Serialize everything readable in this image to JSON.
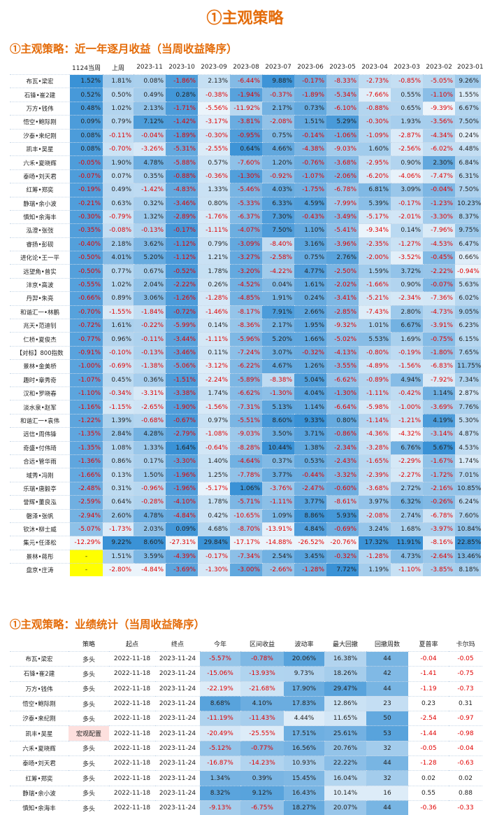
{
  "page_title": "①主观策略",
  "section1": {
    "title": "①主观策略：近一年逐月收益（当周收益降序）",
    "headers": [
      "",
      "1124当周",
      "上周",
      "2023-11",
      "2023-10",
      "2023-09",
      "2023-08",
      "2023-07",
      "2023-06",
      "2023-05",
      "2023-04",
      "2023-03",
      "2023-02",
      "2023-01"
    ],
    "rows": [
      [
        "布瓦•梁宏",
        "1.52%",
        "1.81%",
        "0.08%",
        "-1.86%",
        "2.13%",
        "-6.44%",
        "9.88%",
        "-0.17%",
        "-8.33%",
        "-2.73%",
        "-0.85%",
        "-5.05%",
        "9.26%"
      ],
      [
        "石锋•崔2建",
        "0.52%",
        "0.50%",
        "0.49%",
        "0.28%",
        "-0.38%",
        "-1.94%",
        "-0.37%",
        "-1.89%",
        "-5.34%",
        "-7.66%",
        "0.55%",
        "-1.10%",
        "1.55%"
      ],
      [
        "万方•钱伟",
        "0.48%",
        "1.02%",
        "2.13%",
        "-1.71%",
        "-5.56%",
        "-11.92%",
        "2.17%",
        "0.73%",
        "-6.10%",
        "-0.88%",
        "0.65%",
        "-9.39%",
        "6.67%"
      ],
      [
        "悟空•鲍际刚",
        "0.09%",
        "0.79%",
        "7.12%",
        "-1.42%",
        "-3.17%",
        "-3.81%",
        "-2.08%",
        "1.51%",
        "5.29%",
        "-0.30%",
        "1.93%",
        "-3.56%",
        "7.50%"
      ],
      [
        "汐泰•来纪刚",
        "0.08%",
        "-0.11%",
        "-0.04%",
        "-1.89%",
        "-0.30%",
        "-0.95%",
        "0.75%",
        "-0.14%",
        "-1.06%",
        "-1.09%",
        "-2.87%",
        "-4.34%",
        "0.24%"
      ],
      [
        "凯丰•吴星",
        "0.08%",
        "-0.70%",
        "-3.26%",
        "-5.31%",
        "-2.55%",
        "0.64%",
        "4.66%",
        "-4.38%",
        "-9.03%",
        "1.60%",
        "-2.56%",
        "-6.02%",
        "4.48%"
      ],
      [
        "六禾•夏晓辉",
        "-0.05%",
        "1.90%",
        "4.78%",
        "-5.88%",
        "0.57%",
        "-7.60%",
        "1.20%",
        "-0.76%",
        "-3.68%",
        "-2.95%",
        "0.90%",
        "2.30%",
        "6.84%"
      ],
      [
        "泰旸•刘天君",
        "-0.07%",
        "0.07%",
        "0.35%",
        "-0.88%",
        "-0.36%",
        "-1.30%",
        "-0.92%",
        "-1.07%",
        "-2.06%",
        "-6.20%",
        "-4.06%",
        "-7.47%",
        "6.31%"
      ],
      [
        "红筹•郑奕",
        "-0.19%",
        "0.49%",
        "-1.42%",
        "-4.83%",
        "1.33%",
        "-5.46%",
        "4.03%",
        "-1.75%",
        "-6.78%",
        "6.81%",
        "3.09%",
        "-0.04%",
        "7.50%"
      ],
      [
        "静瑞•余小波",
        "-0.21%",
        "0.63%",
        "0.32%",
        "-3.46%",
        "0.80%",
        "-5.33%",
        "6.33%",
        "4.59%",
        "-7.99%",
        "5.39%",
        "-0.17%",
        "-1.23%",
        "10.23%"
      ],
      [
        "慎知•余海丰",
        "-0.30%",
        "-0.79%",
        "1.32%",
        "-2.89%",
        "-1.76%",
        "-6.37%",
        "7.30%",
        "-0.43%",
        "-3.49%",
        "-5.17%",
        "-2.01%",
        "-3.30%",
        "8.37%"
      ],
      [
        "泓澄•张弢",
        "-0.35%",
        "-0.08%",
        "-0.13%",
        "-0.17%",
        "-1.11%",
        "-4.07%",
        "7.50%",
        "1.10%",
        "-5.41%",
        "-9.34%",
        "0.14%",
        "-7.96%",
        "9.75%"
      ],
      [
        "睿扬•彭砚",
        "-0.40%",
        "2.18%",
        "3.62%",
        "-1.12%",
        "0.79%",
        "-3.09%",
        "-8.40%",
        "3.16%",
        "-3.96%",
        "-2.35%",
        "-1.27%",
        "-4.53%",
        "6.47%"
      ],
      [
        "进化论•王一平",
        "-0.50%",
        "4.01%",
        "5.20%",
        "-1.12%",
        "1.21%",
        "-3.27%",
        "-2.58%",
        "0.75%",
        "2.76%",
        "-2.00%",
        "-3.52%",
        "-0.45%",
        "0.66%"
      ],
      [
        "远望角•曾实",
        "-0.50%",
        "0.77%",
        "0.67%",
        "-0.52%",
        "1.78%",
        "-3.20%",
        "-4.22%",
        "4.77%",
        "-2.50%",
        "1.59%",
        "3.72%",
        "-2.22%",
        "-0.94%"
      ],
      [
        "沣京•高波",
        "-0.55%",
        "1.02%",
        "2.04%",
        "-2.22%",
        "0.26%",
        "-4.52%",
        "0.04%",
        "1.61%",
        "-2.02%",
        "-1.66%",
        "0.90%",
        "-0.07%",
        "5.63%"
      ],
      [
        "丹羿•朱亮",
        "-0.66%",
        "0.89%",
        "3.06%",
        "-1.26%",
        "-1.28%",
        "-4.85%",
        "1.91%",
        "0.24%",
        "-3.41%",
        "-5.21%",
        "-2.34%",
        "-7.36%",
        "6.02%"
      ],
      [
        "和谐汇一•林鹏",
        "-0.70%",
        "-1.55%",
        "-1.84%",
        "-0.72%",
        "-1.46%",
        "-8.17%",
        "7.91%",
        "2.66%",
        "-2.85%",
        "-7.43%",
        "2.80%",
        "-4.73%",
        "9.05%"
      ],
      [
        "兆天•范迪钊",
        "-0.72%",
        "1.61%",
        "-0.22%",
        "-5.99%",
        "0.14%",
        "-8.36%",
        "2.17%",
        "1.95%",
        "-9.32%",
        "1.01%",
        "6.67%",
        "-3.91%",
        "6.23%"
      ],
      [
        "仁桥•夏俊杰",
        "-0.77%",
        "0.96%",
        "-0.11%",
        "-3.44%",
        "-1.11%",
        "-5.96%",
        "5.20%",
        "1.66%",
        "-5.02%",
        "5.53%",
        "1.69%",
        "-0.75%",
        "6.15%"
      ],
      [
        "【对标】800指数",
        "-0.91%",
        "-0.10%",
        "-0.13%",
        "-3.46%",
        "0.11%",
        "-7.24%",
        "3.07%",
        "-0.32%",
        "-4.13%",
        "-0.80%",
        "-0.19%",
        "-1.80%",
        "7.65%"
      ],
      [
        "景林•金美桥",
        "-1.00%",
        "-0.69%",
        "-1.38%",
        "-5.06%",
        "-3.12%",
        "-6.22%",
        "4.67%",
        "1.26%",
        "-3.55%",
        "-4.89%",
        "-1.56%",
        "-6.83%",
        "11.75%"
      ],
      [
        "趣时•章秀奇",
        "-1.07%",
        "0.45%",
        "0.36%",
        "-1.51%",
        "-2.24%",
        "-5.89%",
        "-8.38%",
        "5.04%",
        "-6.62%",
        "-0.89%",
        "4.94%",
        "-7.92%",
        "7.34%"
      ],
      [
        "汉和•罗晓春",
        "-1.10%",
        "-0.34%",
        "-3.31%",
        "-3.38%",
        "1.74%",
        "-6.62%",
        "-1.30%",
        "4.04%",
        "-1.30%",
        "-1.11%",
        "-0.42%",
        "1.14%",
        "2.87%"
      ],
      [
        "淡水泉•赵军",
        "-1.16%",
        "-1.15%",
        "-2.65%",
        "-1.90%",
        "-1.56%",
        "-7.31%",
        "5.13%",
        "1.14%",
        "-6.64%",
        "-5.98%",
        "-1.00%",
        "-3.69%",
        "7.76%"
      ],
      [
        "和谐汇一•袁伟",
        "-1.22%",
        "1.39%",
        "-0.68%",
        "-0.67%",
        "0.97%",
        "-5.51%",
        "8.60%",
        "9.33%",
        "0.80%",
        "-1.14%",
        "-1.21%",
        "4.19%",
        "5.30%"
      ],
      [
        "远信•周伟锋",
        "-1.35%",
        "2.84%",
        "4.28%",
        "-2.79%",
        "-1.08%",
        "-9.03%",
        "3.50%",
        "3.71%",
        "-0.86%",
        "-4.36%",
        "-4.32%",
        "-3.14%",
        "4.87%"
      ],
      [
        "奇盛•付伟琦",
        "-1.35%",
        "1.08%",
        "1.33%",
        "1.64%",
        "-0.64%",
        "-8.28%",
        "10.44%",
        "1.38%",
        "-2.34%",
        "-3.28%",
        "6.76%",
        "5.67%",
        "4.53%"
      ],
      [
        "合远•管华雨",
        "-1.36%",
        "0.86%",
        "0.17%",
        "-3.30%",
        "1.40%",
        "-4.64%",
        "0.37%",
        "0.53%",
        "-2.43%",
        "-1.65%",
        "-2.29%",
        "-1.67%",
        "1.74%"
      ],
      [
        "域秀•冯刚",
        "-1.66%",
        "0.13%",
        "1.50%",
        "-1.96%",
        "1.25%",
        "-7.78%",
        "3.77%",
        "-0.44%",
        "-3.32%",
        "-2.39%",
        "-2.27%",
        "-1.72%",
        "7.01%"
      ],
      [
        "乐瑞•唐毅亭",
        "-2.48%",
        "0.31%",
        "-0.96%",
        "-1.96%",
        "-5.17%",
        "1.06%",
        "-3.76%",
        "-2.47%",
        "-0.60%",
        "-3.68%",
        "2.72%",
        "-2.16%",
        "10.85%"
      ],
      [
        "誉辉•董良泓",
        "-2.59%",
        "0.64%",
        "-0.28%",
        "-4.10%",
        "1.78%",
        "-5.71%",
        "-1.11%",
        "3.77%",
        "-8.61%",
        "3.97%",
        "6.32%",
        "-0.26%",
        "6.24%"
      ],
      [
        "磐泽•张帆",
        "-2.94%",
        "2.60%",
        "4.78%",
        "-4.84%",
        "0.42%",
        "-10.65%",
        "1.09%",
        "8.86%",
        "5.93%",
        "-2.08%",
        "2.74%",
        "-6.78%",
        "7.60%"
      ],
      [
        "钦沐•柳士威",
        "-5.07%",
        "-1.73%",
        "2.03%",
        "0.09%",
        "4.68%",
        "-8.70%",
        "-13.91%",
        "4.84%",
        "-0.69%",
        "3.24%",
        "1.68%",
        "-3.97%",
        "10.84%"
      ],
      [
        "集元•任泽松",
        "-12.29%",
        "9.22%",
        "8.60%",
        "-27.31%",
        "29.84%",
        "-17.17%",
        "-14.88%",
        "-26.52%",
        "-20.76%",
        "17.32%",
        "11.91%",
        "-8.16%",
        "22.85%"
      ],
      [
        "景林•蒋彤",
        "-",
        "1.51%",
        "3.59%",
        "-4.39%",
        "-0.17%",
        "-7.34%",
        "2.54%",
        "3.45%",
        "-0.32%",
        "-1.28%",
        "4.73%",
        "-2.64%",
        "13.46%"
      ],
      [
        "盘京•庄涛",
        "-",
        "-2.80%",
        "-4.84%",
        "-3.69%",
        "-1.30%",
        "-3.00%",
        "-2.66%",
        "-1.28%",
        "7.72%",
        "1.19%",
        "-1.10%",
        "-3.85%",
        "8.18%"
      ]
    ]
  },
  "section2": {
    "title": "①主观策略：业绩统计（当周收益降序）",
    "headers": [
      "",
      "策略",
      "起点",
      "终点",
      "今年",
      "区间收益",
      "波动率",
      "最大回撤",
      "回撤周数",
      "夏普率",
      "卡尔玛"
    ],
    "rows": [
      [
        "布瓦•梁宏",
        "多头",
        "2022-11-18",
        "2023-11-24",
        "-5.57%",
        "-0.78%",
        "20.06%",
        "16.38%",
        "44",
        "-0.04",
        "-0.05"
      ],
      [
        "石锋•崔2建",
        "多头",
        "2022-11-18",
        "2023-11-24",
        "-15.06%",
        "-13.93%",
        "9.73%",
        "18.26%",
        "42",
        "-1.41",
        "-0.75"
      ],
      [
        "万方•钱伟",
        "多头",
        "2022-11-18",
        "2023-11-24",
        "-22.19%",
        "-21.68%",
        "17.90%",
        "29.47%",
        "44",
        "-1.19",
        "-0.73"
      ],
      [
        "悟空•鲍际刚",
        "多头",
        "2022-11-18",
        "2023-11-24",
        "8.68%",
        "4.10%",
        "17.83%",
        "12.86%",
        "23",
        "0.23",
        "0.31"
      ],
      [
        "汐泰•来纪刚",
        "多头",
        "2022-11-18",
        "2023-11-24",
        "-11.19%",
        "-11.43%",
        "4.44%",
        "11.65%",
        "50",
        "-2.54",
        "-0.97"
      ],
      [
        "凯丰•吴星",
        "宏观配置",
        "2022-11-18",
        "2023-11-24",
        "-20.49%",
        "-25.55%",
        "17.51%",
        "25.61%",
        "53",
        "-1.44",
        "-0.98"
      ],
      [
        "六禾•夏晓辉",
        "多头",
        "2022-11-18",
        "2023-11-24",
        "-5.12%",
        "-0.77%",
        "16.56%",
        "20.76%",
        "32",
        "-0.05",
        "-0.04"
      ],
      [
        "泰旸•刘天君",
        "多头",
        "2022-11-18",
        "2023-11-24",
        "-16.87%",
        "-14.23%",
        "10.93%",
        "22.22%",
        "44",
        "-1.28",
        "-0.63"
      ],
      [
        "红筹•郑奕",
        "多头",
        "2022-11-18",
        "2023-11-24",
        "1.34%",
        "0.39%",
        "15.45%",
        "16.04%",
        "32",
        "0.02",
        "0.02"
      ],
      [
        "静瑞•余小波",
        "多头",
        "2022-11-18",
        "2023-11-24",
        "8.32%",
        "9.12%",
        "16.43%",
        "10.14%",
        "16",
        "0.55",
        "0.88"
      ],
      [
        "慎知•余海丰",
        "多头",
        "2022-11-18",
        "2023-11-24",
        "-9.13%",
        "-6.75%",
        "18.27%",
        "20.07%",
        "44",
        "-0.36",
        "-0.33"
      ]
    ]
  },
  "colors": {
    "title": "#e46c0a",
    "negative_text": "#e00000",
    "highlight": "#ffff00",
    "pink_cell": "#fde0de"
  }
}
